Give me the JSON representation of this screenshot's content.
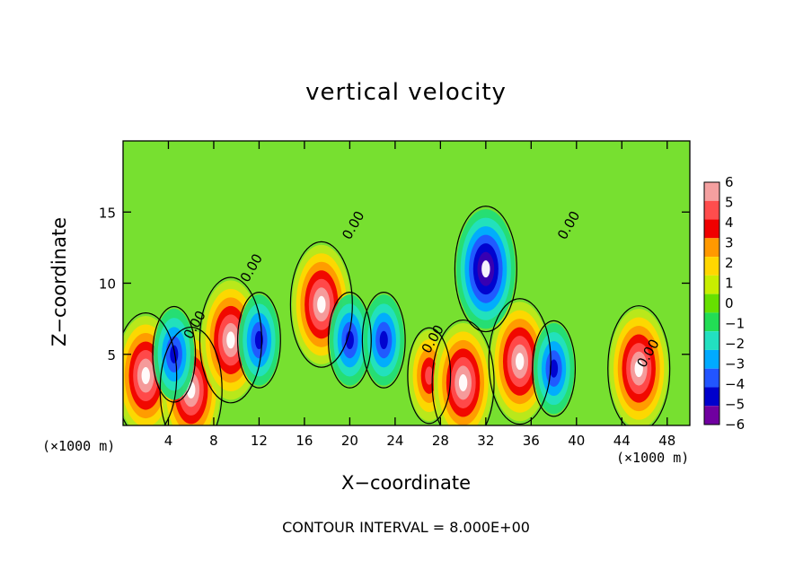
{
  "chart_data": {
    "type": "heatmap",
    "title": "vertical velocity",
    "xlabel": "X−coordinate",
    "ylabel": "Z−coordinate",
    "x_unit_label": "(×1000 m)",
    "y_unit_label": "(×1000 m)",
    "footer": "CONTOUR INTERVAL = 8.000E+00",
    "xlim": [
      0,
      50
    ],
    "ylim": [
      0,
      20
    ],
    "x_ticks": [
      "4",
      "8",
      "12",
      "16",
      "20",
      "24",
      "28",
      "32",
      "36",
      "40",
      "44",
      "48"
    ],
    "x_tick_values": [
      4,
      8,
      12,
      16,
      20,
      24,
      28,
      32,
      36,
      40,
      44,
      48
    ],
    "y_ticks": [
      "5",
      "10",
      "15"
    ],
    "y_tick_values": [
      5,
      10,
      15
    ],
    "colorbar": {
      "levels": [
        "6",
        "5",
        "4",
        "3",
        "2",
        "1",
        "0",
        "−1",
        "−2",
        "−3",
        "−4",
        "−5",
        "−6"
      ],
      "colors": [
        "#f4a0a0",
        "#ff4d4d",
        "#f00000",
        "#ff9900",
        "#ffd700",
        "#c8ee00",
        "#66e000",
        "#22dd55",
        "#22e0c0",
        "#00aaff",
        "#2255ff",
        "#0000cc",
        "#7000a0"
      ]
    },
    "contour_labels": [
      "0.00",
      "0.00",
      "0.00",
      "0.00",
      "0.00",
      "0.00"
    ],
    "features": [
      {
        "x": 2,
        "z": 3.5,
        "sign": "up",
        "strength": "strong"
      },
      {
        "x": 6,
        "z": 2.5,
        "sign": "up",
        "strength": "strong"
      },
      {
        "x": 9.5,
        "z": 6,
        "sign": "up",
        "strength": "strong"
      },
      {
        "x": 17.5,
        "z": 8.5,
        "sign": "up",
        "strength": "strong"
      },
      {
        "x": 27,
        "z": 3.5,
        "sign": "up",
        "strength": "medium"
      },
      {
        "x": 30,
        "z": 3,
        "sign": "up",
        "strength": "strong"
      },
      {
        "x": 35,
        "z": 4.5,
        "sign": "up",
        "strength": "strong"
      },
      {
        "x": 45.5,
        "z": 4,
        "sign": "up",
        "strength": "strong"
      },
      {
        "x": 32,
        "z": 11,
        "sign": "down",
        "strength": "strong"
      },
      {
        "x": 20,
        "z": 6,
        "sign": "down",
        "strength": "medium"
      },
      {
        "x": 23,
        "z": 6,
        "sign": "down",
        "strength": "medium"
      },
      {
        "x": 12,
        "z": 6,
        "sign": "down",
        "strength": "medium"
      },
      {
        "x": 4.5,
        "z": 5,
        "sign": "down",
        "strength": "medium"
      },
      {
        "x": 38,
        "z": 4,
        "sign": "down",
        "strength": "medium"
      }
    ]
  }
}
